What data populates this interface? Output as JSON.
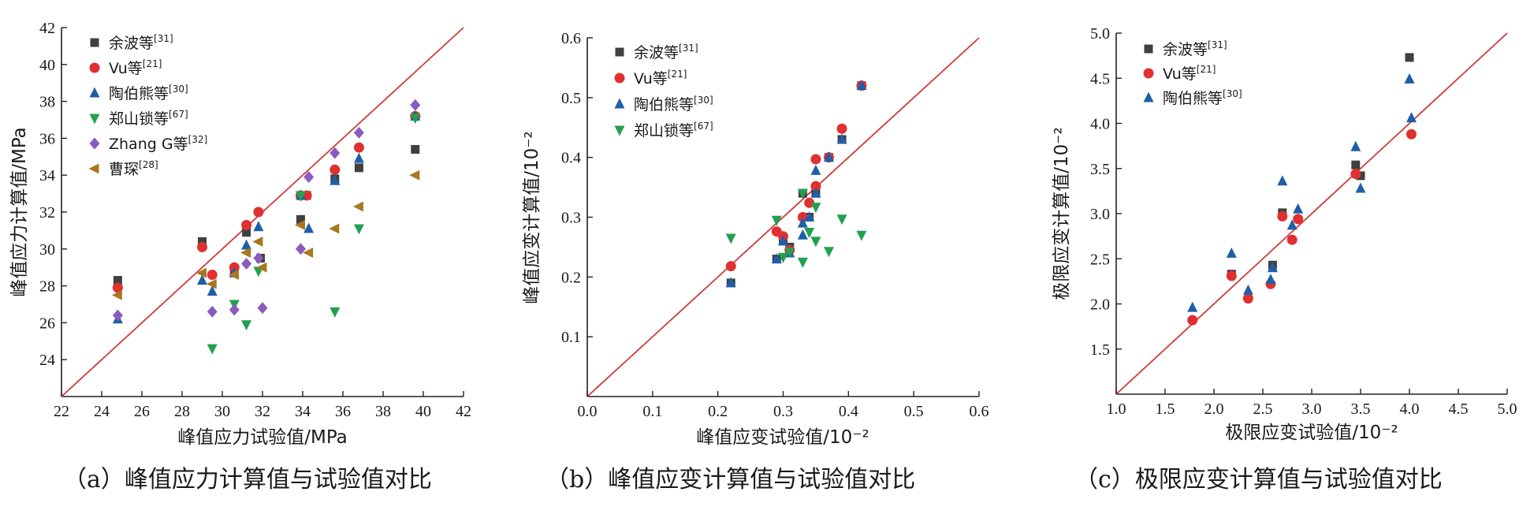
{
  "chart_data": [
    {
      "type": "scatter",
      "caption": "（a）峰值应力计算值与试验值对比",
      "xlabel": "峰值应力试验值/MPa",
      "ylabel": "峰值应力计算值/MPa",
      "xlim": [
        22,
        42
      ],
      "ylim": [
        22,
        42
      ],
      "xticks": [
        "22",
        "24",
        "26",
        "28",
        "30",
        "32",
        "34",
        "36",
        "38",
        "40",
        "42"
      ],
      "yticks": [
        "24",
        "26",
        "28",
        "30",
        "32",
        "34",
        "36",
        "38",
        "40",
        "42"
      ],
      "legend_position": "top-left",
      "series": [
        {
          "name": "余波等",
          "ref": "[31]",
          "marker": "square",
          "color": "#404040",
          "x": [
            24.8,
            29.0,
            30.6,
            31.2,
            31.9,
            33.9,
            34.2,
            35.6,
            36.8,
            39.6
          ],
          "y": [
            28.3,
            30.4,
            28.7,
            30.9,
            29.5,
            31.6,
            32.9,
            33.8,
            34.4,
            35.4
          ]
        },
        {
          "name": "Vu等",
          "ref": "[21]",
          "marker": "circle",
          "color": "#e03030",
          "x": [
            24.8,
            29.0,
            29.5,
            30.6,
            31.2,
            31.8,
            33.9,
            34.2,
            35.6,
            36.8,
            39.6
          ],
          "y": [
            27.9,
            30.1,
            28.6,
            29.0,
            31.3,
            32.0,
            32.9,
            32.9,
            34.3,
            35.5,
            37.2
          ]
        },
        {
          "name": "陶伯熊等",
          "ref": "[30]",
          "marker": "triangle-up",
          "color": "#1f5fa8",
          "x": [
            24.8,
            29.0,
            29.5,
            30.6,
            31.2,
            31.8,
            33.9,
            34.3,
            35.6,
            36.8,
            39.6
          ],
          "y": [
            26.2,
            28.3,
            27.7,
            28.7,
            30.2,
            31.2,
            32.9,
            31.1,
            33.7,
            34.9,
            37.2
          ]
        },
        {
          "name": "郑山锁等",
          "ref": "[67]",
          "marker": "triangle-down",
          "color": "#22a050",
          "x": [
            29.5,
            30.6,
            31.2,
            31.8,
            33.9,
            35.6,
            36.8,
            39.6
          ],
          "y": [
            24.6,
            27.0,
            25.9,
            28.8,
            32.9,
            26.6,
            31.1,
            37.1
          ]
        },
        {
          "name": "Zhang G等",
          "ref": "[32]",
          "marker": "diamond",
          "color": "#8a5cc0",
          "x": [
            24.8,
            29.5,
            30.6,
            31.2,
            31.8,
            32.0,
            33.9,
            34.3,
            35.6,
            36.8,
            39.6
          ],
          "y": [
            26.4,
            26.6,
            26.7,
            29.2,
            29.5,
            26.8,
            30.0,
            33.9,
            35.2,
            36.3,
            37.8
          ]
        },
        {
          "name": "曹琛",
          "ref": "[28]",
          "marker": "triangle-left",
          "color": "#a87820",
          "x": [
            24.8,
            29.0,
            29.5,
            30.6,
            31.2,
            31.8,
            32.0,
            33.9,
            34.3,
            35.6,
            36.8,
            39.6
          ],
          "y": [
            27.5,
            28.7,
            28.1,
            28.6,
            29.8,
            30.4,
            29.0,
            31.3,
            29.8,
            31.1,
            32.3,
            34.0
          ]
        }
      ]
    },
    {
      "type": "scatter",
      "caption": "（b）峰值应变计算值与试验值对比",
      "xlabel": "峰值应变试验值/10⁻²",
      "ylabel": "峰值应变计算值/10⁻²",
      "xlim": [
        0.0,
        0.6
      ],
      "ylim": [
        0.0,
        0.6
      ],
      "xticks": [
        "0.0",
        "0.1",
        "0.2",
        "0.3",
        "0.4",
        "0.5",
        "0.6"
      ],
      "yticks": [
        "0.1",
        "0.2",
        "0.3",
        "0.4",
        "0.5",
        "0.6"
      ],
      "legend_position": "top-left",
      "series": [
        {
          "name": "余波等",
          "ref": "[31]",
          "marker": "square",
          "color": "#404040",
          "x": [
            0.22,
            0.29,
            0.3,
            0.31,
            0.33,
            0.34,
            0.35,
            0.37,
            0.39,
            0.42
          ],
          "y": [
            0.19,
            0.23,
            0.26,
            0.25,
            0.34,
            0.3,
            0.34,
            0.4,
            0.43,
            0.52
          ]
        },
        {
          "name": "Vu等",
          "ref": "[21]",
          "marker": "circle",
          "color": "#e03030",
          "x": [
            0.22,
            0.29,
            0.3,
            0.31,
            0.33,
            0.34,
            0.35,
            0.35,
            0.37,
            0.39,
            0.42
          ],
          "y": [
            0.218,
            0.276,
            0.268,
            0.245,
            0.3,
            0.324,
            0.352,
            0.397,
            0.4,
            0.448,
            0.52
          ]
        },
        {
          "name": "陶伯熊等",
          "ref": "[30]",
          "marker": "triangle-up",
          "color": "#1f5fa8",
          "x": [
            0.22,
            0.29,
            0.3,
            0.31,
            0.33,
            0.33,
            0.34,
            0.35,
            0.35,
            0.37,
            0.39,
            0.42
          ],
          "y": [
            0.19,
            0.23,
            0.26,
            0.24,
            0.27,
            0.29,
            0.3,
            0.34,
            0.378,
            0.4,
            0.43,
            0.52
          ]
        },
        {
          "name": "郑山锁等",
          "ref": "[67]",
          "marker": "triangle-down",
          "color": "#22a050",
          "x": [
            0.22,
            0.29,
            0.3,
            0.31,
            0.33,
            0.33,
            0.34,
            0.35,
            0.35,
            0.37,
            0.39,
            0.42
          ],
          "y": [
            0.265,
            0.295,
            0.233,
            0.242,
            0.225,
            0.34,
            0.275,
            0.26,
            0.317,
            0.243,
            0.297,
            0.27
          ]
        }
      ]
    },
    {
      "type": "scatter",
      "caption": "（c）极限应变计算值与试验值对比",
      "xlabel": "极限应变试验值/10⁻²",
      "ylabel": "极限应变计算值/10⁻²",
      "xlim": [
        1.0,
        5.0
      ],
      "ylim": [
        1.0,
        5.0
      ],
      "xticks": [
        "1.0",
        "1.5",
        "2.0",
        "2.5",
        "3.0",
        "3.5",
        "4.0",
        "4.5",
        "5.0"
      ],
      "yticks": [
        "1.5",
        "2.0",
        "2.5",
        "3.0",
        "3.5",
        "4.0",
        "4.5",
        "5.0"
      ],
      "legend_position": "top-left",
      "series": [
        {
          "name": "余波等",
          "ref": "[31]",
          "marker": "square",
          "color": "#404040",
          "x": [
            2.18,
            2.6,
            2.7,
            3.45,
            3.5,
            4.0
          ],
          "y": [
            2.33,
            2.43,
            3.01,
            3.54,
            3.42,
            4.73
          ]
        },
        {
          "name": "Vu等",
          "ref": "[21]",
          "marker": "circle",
          "color": "#e03030",
          "x": [
            1.78,
            2.18,
            2.35,
            2.58,
            2.7,
            2.8,
            2.86,
            3.45,
            4.02
          ],
          "y": [
            1.82,
            2.31,
            2.06,
            2.22,
            2.97,
            2.71,
            2.94,
            3.44,
            3.88
          ]
        },
        {
          "name": "陶伯熊等",
          "ref": "[30]",
          "marker": "triangle-up",
          "color": "#1f5fa8",
          "x": [
            1.78,
            2.18,
            2.35,
            2.58,
            2.6,
            2.7,
            2.8,
            2.86,
            3.45,
            3.5,
            4.0,
            4.02
          ],
          "y": [
            1.96,
            2.56,
            2.15,
            2.27,
            2.4,
            3.36,
            2.87,
            3.05,
            3.74,
            3.28,
            4.49,
            4.06
          ]
        }
      ]
    }
  ]
}
